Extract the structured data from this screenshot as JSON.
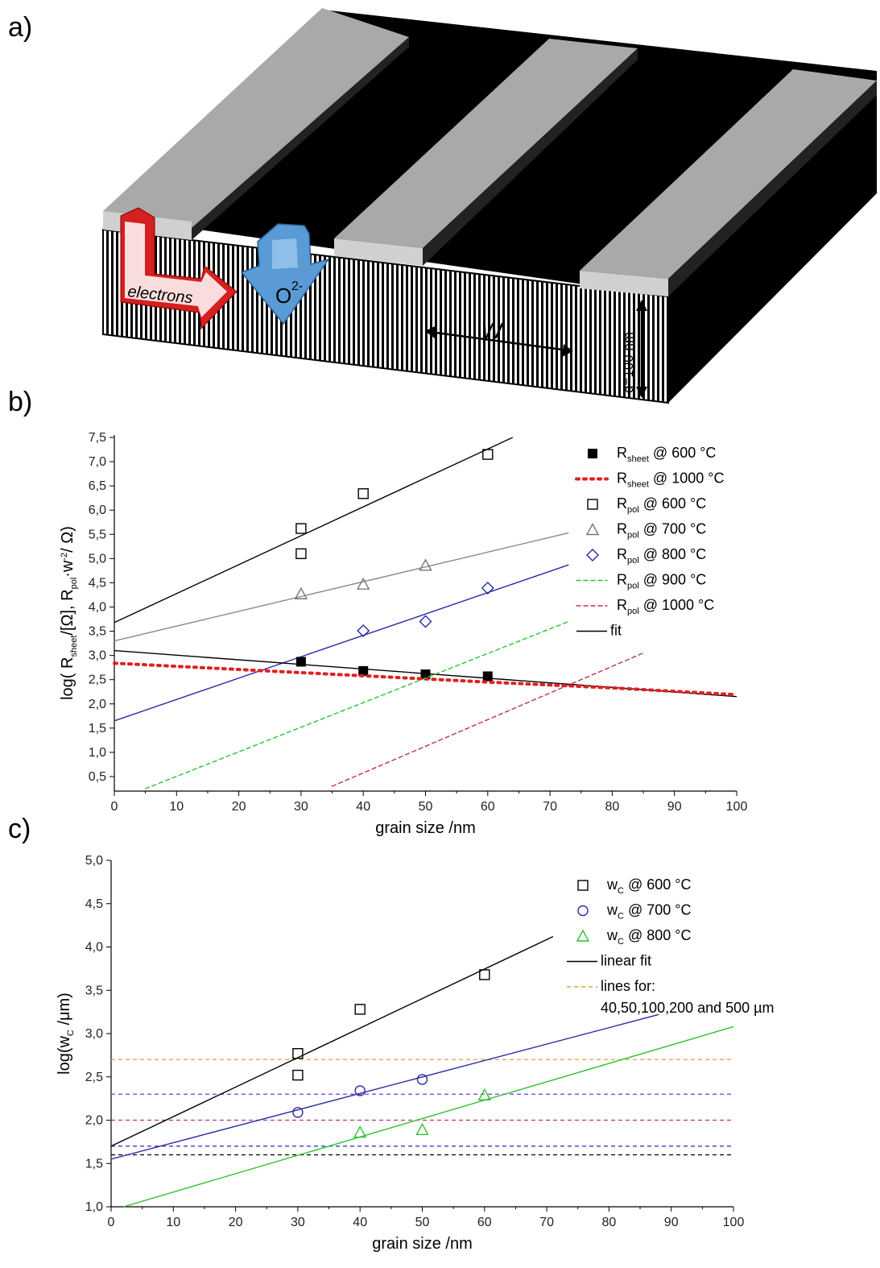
{
  "panel_labels": {
    "a": "a)",
    "b": "b)",
    "c": "c)"
  },
  "schematic": {
    "electrons_label": "electrons",
    "oxygen_label": "O",
    "oxygen_charge": "2-",
    "width_label": "w",
    "thickness_label": "d=100 nm",
    "colors": {
      "electrode": "#b3b3b3",
      "electrode_top": "#a0a0a0",
      "electrolyte": "#000000",
      "electron_arrow": "#d42020",
      "oxygen_arrow": "#5a9bd5"
    }
  },
  "chart_data": [
    {
      "type": "scatter",
      "xlabel": "grain size /nm",
      "ylabel_parts": [
        "log( R",
        "sheet",
        "/[Ω], R",
        "pol",
        "·w",
        "-2",
        "/ Ω)"
      ],
      "xlim": [
        0,
        100
      ],
      "ylim": [
        0.2,
        7.55
      ],
      "xticks": [
        0,
        10,
        20,
        30,
        40,
        50,
        60,
        70,
        80,
        90,
        100
      ],
      "yticks": [
        0.5,
        1.0,
        1.5,
        2.0,
        2.5,
        3.0,
        3.5,
        4.0,
        4.5,
        5.0,
        5.5,
        6.0,
        6.5,
        7.0,
        7.5
      ],
      "ytick_labels": [
        "0,5",
        "1,0",
        "1,5",
        "2,0",
        "2,5",
        "3,0",
        "3,5",
        "4,0",
        "4,5",
        "5,0",
        "5,5",
        "6,0",
        "6,5",
        "7,0",
        "7,5"
      ],
      "series": [
        {
          "key": "rsheet600",
          "legend": [
            "R",
            "sheet",
            " @ 600 °C"
          ],
          "marker": "filled-square",
          "color": "#000000",
          "x": [
            30,
            40,
            50,
            60
          ],
          "y": [
            2.87,
            2.68,
            2.61,
            2.57
          ]
        },
        {
          "key": "rsheet1000",
          "legend": [
            "R",
            "sheet",
            " @ 1000 °C"
          ],
          "marker": "dotted-line",
          "color": "#e02020",
          "x": [
            0,
            20,
            40,
            60,
            80,
            100
          ],
          "y": [
            2.84,
            2.71,
            2.58,
            2.45,
            2.33,
            2.19
          ]
        },
        {
          "key": "rpol600",
          "legend": [
            "R",
            "pol",
            " @ 600 °C"
          ],
          "marker": "open-square",
          "color": "#000000",
          "x": [
            30,
            30,
            40,
            60
          ],
          "y": [
            5.62,
            5.1,
            6.34,
            7.15
          ]
        },
        {
          "key": "rpol700",
          "legend": [
            "R",
            "pol",
            " @ 700 °C"
          ],
          "marker": "open-triangle",
          "color": "#777777",
          "x": [
            30,
            40,
            50
          ],
          "y": [
            4.27,
            4.47,
            4.86
          ]
        },
        {
          "key": "rpol800",
          "legend": [
            "R",
            "pol",
            " @ 800 °C"
          ],
          "marker": "open-diamond",
          "color": "#2a2aa8",
          "x": [
            40,
            50,
            60
          ],
          "y": [
            3.51,
            3.7,
            4.39
          ]
        },
        {
          "key": "rpol900",
          "legend": [
            "R",
            "pol",
            " @ 900 °C"
          ],
          "marker": "dashed-line",
          "color": "#2ec22e",
          "x": [
            5,
            73
          ],
          "y": [
            0.25,
            3.7
          ]
        },
        {
          "key": "rpol1000",
          "legend": [
            "R",
            "pol",
            " @ 1000 °C"
          ],
          "marker": "dashed-line",
          "color": "#c0304a",
          "x": [
            35,
            85
          ],
          "y": [
            0.3,
            3.05
          ]
        }
      ],
      "fits": [
        {
          "color": "#000000",
          "x": [
            0,
            64
          ],
          "y": [
            3.68,
            7.5
          ]
        },
        {
          "color": "#8a8a8a",
          "x": [
            0,
            73
          ],
          "y": [
            3.3,
            5.53
          ]
        },
        {
          "color": "#2a2aa8",
          "x": [
            0,
            73
          ],
          "y": [
            1.65,
            4.87
          ]
        },
        {
          "color": "#000000",
          "x": [
            0,
            100
          ],
          "y": [
            3.1,
            2.15
          ]
        }
      ],
      "fit_legend": "fit"
    },
    {
      "type": "scatter",
      "xlabel": "grain size /nm",
      "ylabel_parts": [
        "log(w",
        "C",
        " /μm)"
      ],
      "xlim": [
        0,
        100
      ],
      "ylim": [
        1.0,
        5.0
      ],
      "xticks": [
        0,
        10,
        20,
        30,
        40,
        50,
        60,
        70,
        80,
        90,
        100
      ],
      "yticks": [
        1.0,
        1.5,
        2.0,
        2.5,
        3.0,
        3.5,
        4.0,
        4.5,
        5.0
      ],
      "ytick_labels": [
        "1,0",
        "1,5",
        "2,0",
        "2,5",
        "3,0",
        "3,5",
        "4,0",
        "4,5",
        "5,0"
      ],
      "series": [
        {
          "key": "wc600",
          "legend": [
            "w",
            "C",
            " @ 600 °C"
          ],
          "marker": "open-square",
          "color": "#000000",
          "x": [
            30,
            30,
            40,
            60
          ],
          "y": [
            2.77,
            2.52,
            3.28,
            3.68
          ]
        },
        {
          "key": "wc700",
          "legend": [
            "w",
            "C",
            " @ 700 °C"
          ],
          "marker": "open-circle",
          "color": "#2a2aa8",
          "x": [
            30,
            40,
            50
          ],
          "y": [
            2.09,
            2.34,
            2.47
          ]
        },
        {
          "key": "wc800",
          "legend": [
            "w",
            "C",
            " @ 800 °C"
          ],
          "marker": "open-triangle",
          "color": "#2ec22e",
          "x": [
            40,
            50,
            60
          ],
          "y": [
            1.86,
            1.89,
            2.29
          ]
        }
      ],
      "fits": [
        {
          "color": "#000000",
          "x": [
            0,
            71
          ],
          "y": [
            1.7,
            4.12
          ]
        },
        {
          "color": "#2a2aa8",
          "x": [
            0,
            88
          ],
          "y": [
            1.55,
            3.22
          ]
        },
        {
          "color": "#2ec22e",
          "x": [
            2,
            100
          ],
          "y": [
            1.0,
            3.08
          ]
        }
      ],
      "hlines": [
        {
          "y": 2.7,
          "color": "#e0a040"
        },
        {
          "y": 2.3,
          "color": "#7a3ad0"
        },
        {
          "y": 2.0,
          "color": "#c02a8a"
        },
        {
          "y": 1.7,
          "color": "#2a2aa8"
        },
        {
          "y": 1.6,
          "color": "#000000"
        }
      ],
      "fit_legend": "linear fit",
      "hline_legend_1": "lines for:",
      "hline_legend_2": "40,50,100,200 and 500 µm"
    }
  ]
}
